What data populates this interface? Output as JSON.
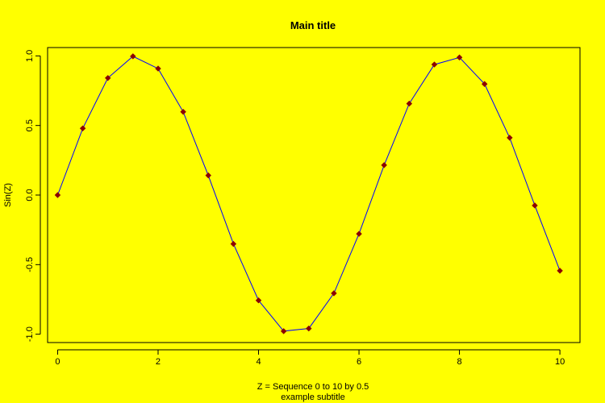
{
  "colors": {
    "background": "#ffff00",
    "line": "#0000ff",
    "marker": "#8b0000",
    "axis": "#000000"
  },
  "chart_data": {
    "type": "line",
    "title": "Main title",
    "xlabel": "Z = Sequence 0 to 10 by 0.5",
    "subtitle": "example subtitle",
    "ylabel": "Sin(Z)",
    "xlim": [
      -0.2,
      10.4
    ],
    "ylim": [
      -1.06,
      1.06
    ],
    "x_ticks": [
      0,
      2,
      4,
      6,
      8,
      10
    ],
    "x_tick_labels": [
      "0",
      "2",
      "4",
      "6",
      "8",
      "10"
    ],
    "y_ticks": [
      -1.0,
      -0.5,
      0.0,
      0.5,
      1.0
    ],
    "y_tick_labels": [
      "-1.0",
      "-0.5",
      "0.0",
      "0.5",
      "1.0"
    ],
    "grid": false,
    "marker": "diamond",
    "series": [
      {
        "x": [
          0,
          0.5,
          1,
          1.5,
          2,
          2.5,
          3,
          3.5,
          4,
          4.5,
          5,
          5.5,
          6,
          6.5,
          7,
          7.5,
          8,
          8.5,
          9,
          9.5,
          10
        ],
        "values": [
          0,
          0.479,
          0.841,
          0.997,
          0.909,
          0.598,
          0.141,
          -0.351,
          -0.757,
          -0.978,
          -0.959,
          -0.706,
          -0.279,
          0.215,
          0.657,
          0.938,
          0.989,
          0.798,
          0.412,
          -0.075,
          -0.544
        ]
      }
    ]
  }
}
